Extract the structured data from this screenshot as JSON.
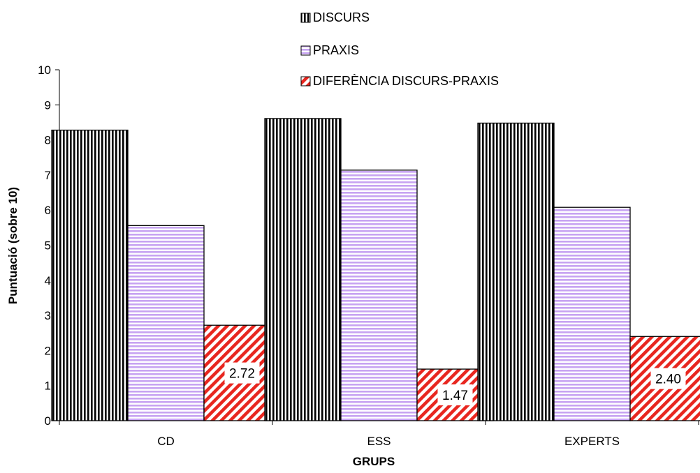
{
  "chart_data": {
    "type": "bar",
    "categories": [
      "CD",
      "ESS",
      "EXPERTS"
    ],
    "series": [
      {
        "name": "DISCURS",
        "values": [
          8.28,
          8.61,
          8.48
        ],
        "pattern": "vertical-stripes",
        "color": "#000000"
      },
      {
        "name": "PRAXIS",
        "values": [
          5.56,
          7.14,
          6.08
        ],
        "pattern": "horizontal-stripes",
        "color": "#c7a3f2"
      },
      {
        "name": "DIFERÈNCIA DISCURS-PRAXIS",
        "values": [
          2.72,
          1.47,
          2.4
        ],
        "pattern": "diagonal-stripes",
        "color": "#e8261f"
      }
    ],
    "data_labels": [
      "2.72",
      "1.47",
      "2.40"
    ],
    "xlabel": "GRUPS",
    "ylabel": "Puntuació (sobre 10)",
    "ylim": [
      0,
      10
    ],
    "yticks": [
      "0",
      "1",
      "2",
      "3",
      "4",
      "5",
      "6",
      "7",
      "8",
      "9",
      "10"
    ],
    "grid": false,
    "legend_position": "top"
  }
}
